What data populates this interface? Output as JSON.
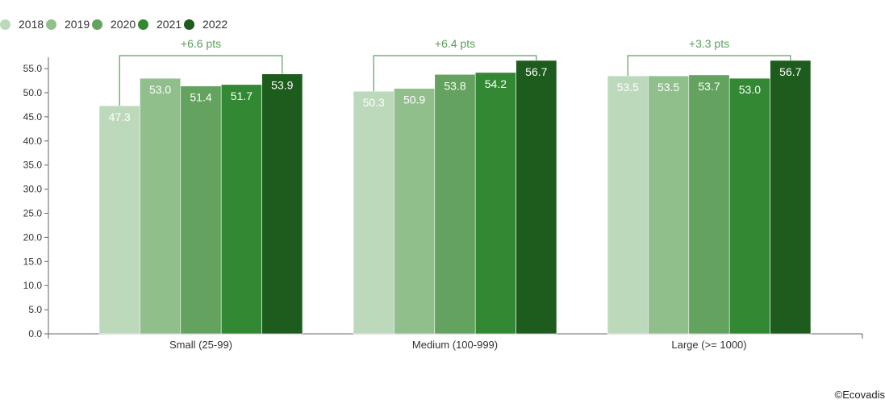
{
  "chart_data": {
    "type": "bar",
    "categories": [
      "Small (25-99)",
      "Medium (100-999)",
      "Large (>= 1000)"
    ],
    "series": [
      {
        "name": "2018",
        "color": "#bcd9bc",
        "values": [
          47.3,
          50.3,
          53.5
        ]
      },
      {
        "name": "2019",
        "color": "#90bf8c",
        "values": [
          53.0,
          50.9,
          53.5
        ]
      },
      {
        "name": "2020",
        "color": "#63a25f",
        "values": [
          51.4,
          53.8,
          53.7
        ]
      },
      {
        "name": "2021",
        "color": "#338833",
        "values": [
          51.7,
          54.2,
          53.0
        ]
      },
      {
        "name": "2022",
        "color": "#1d5c1d",
        "values": [
          53.9,
          56.7,
          56.7
        ]
      }
    ],
    "annotations": [
      "+6.6 pts",
      "+6.4 pts",
      "+3.3 pts"
    ],
    "ylim": [
      0,
      57
    ],
    "yticks": [
      "0.0",
      "5.0",
      "10.0",
      "15.0",
      "20.0",
      "25.0",
      "30.0",
      "35.0",
      "40.0",
      "45.0",
      "50.0",
      "55.0"
    ],
    "legend_position": "top-left",
    "grid": false,
    "annotation_color": "#5aa05a"
  },
  "copyright": "©Ecovadis"
}
